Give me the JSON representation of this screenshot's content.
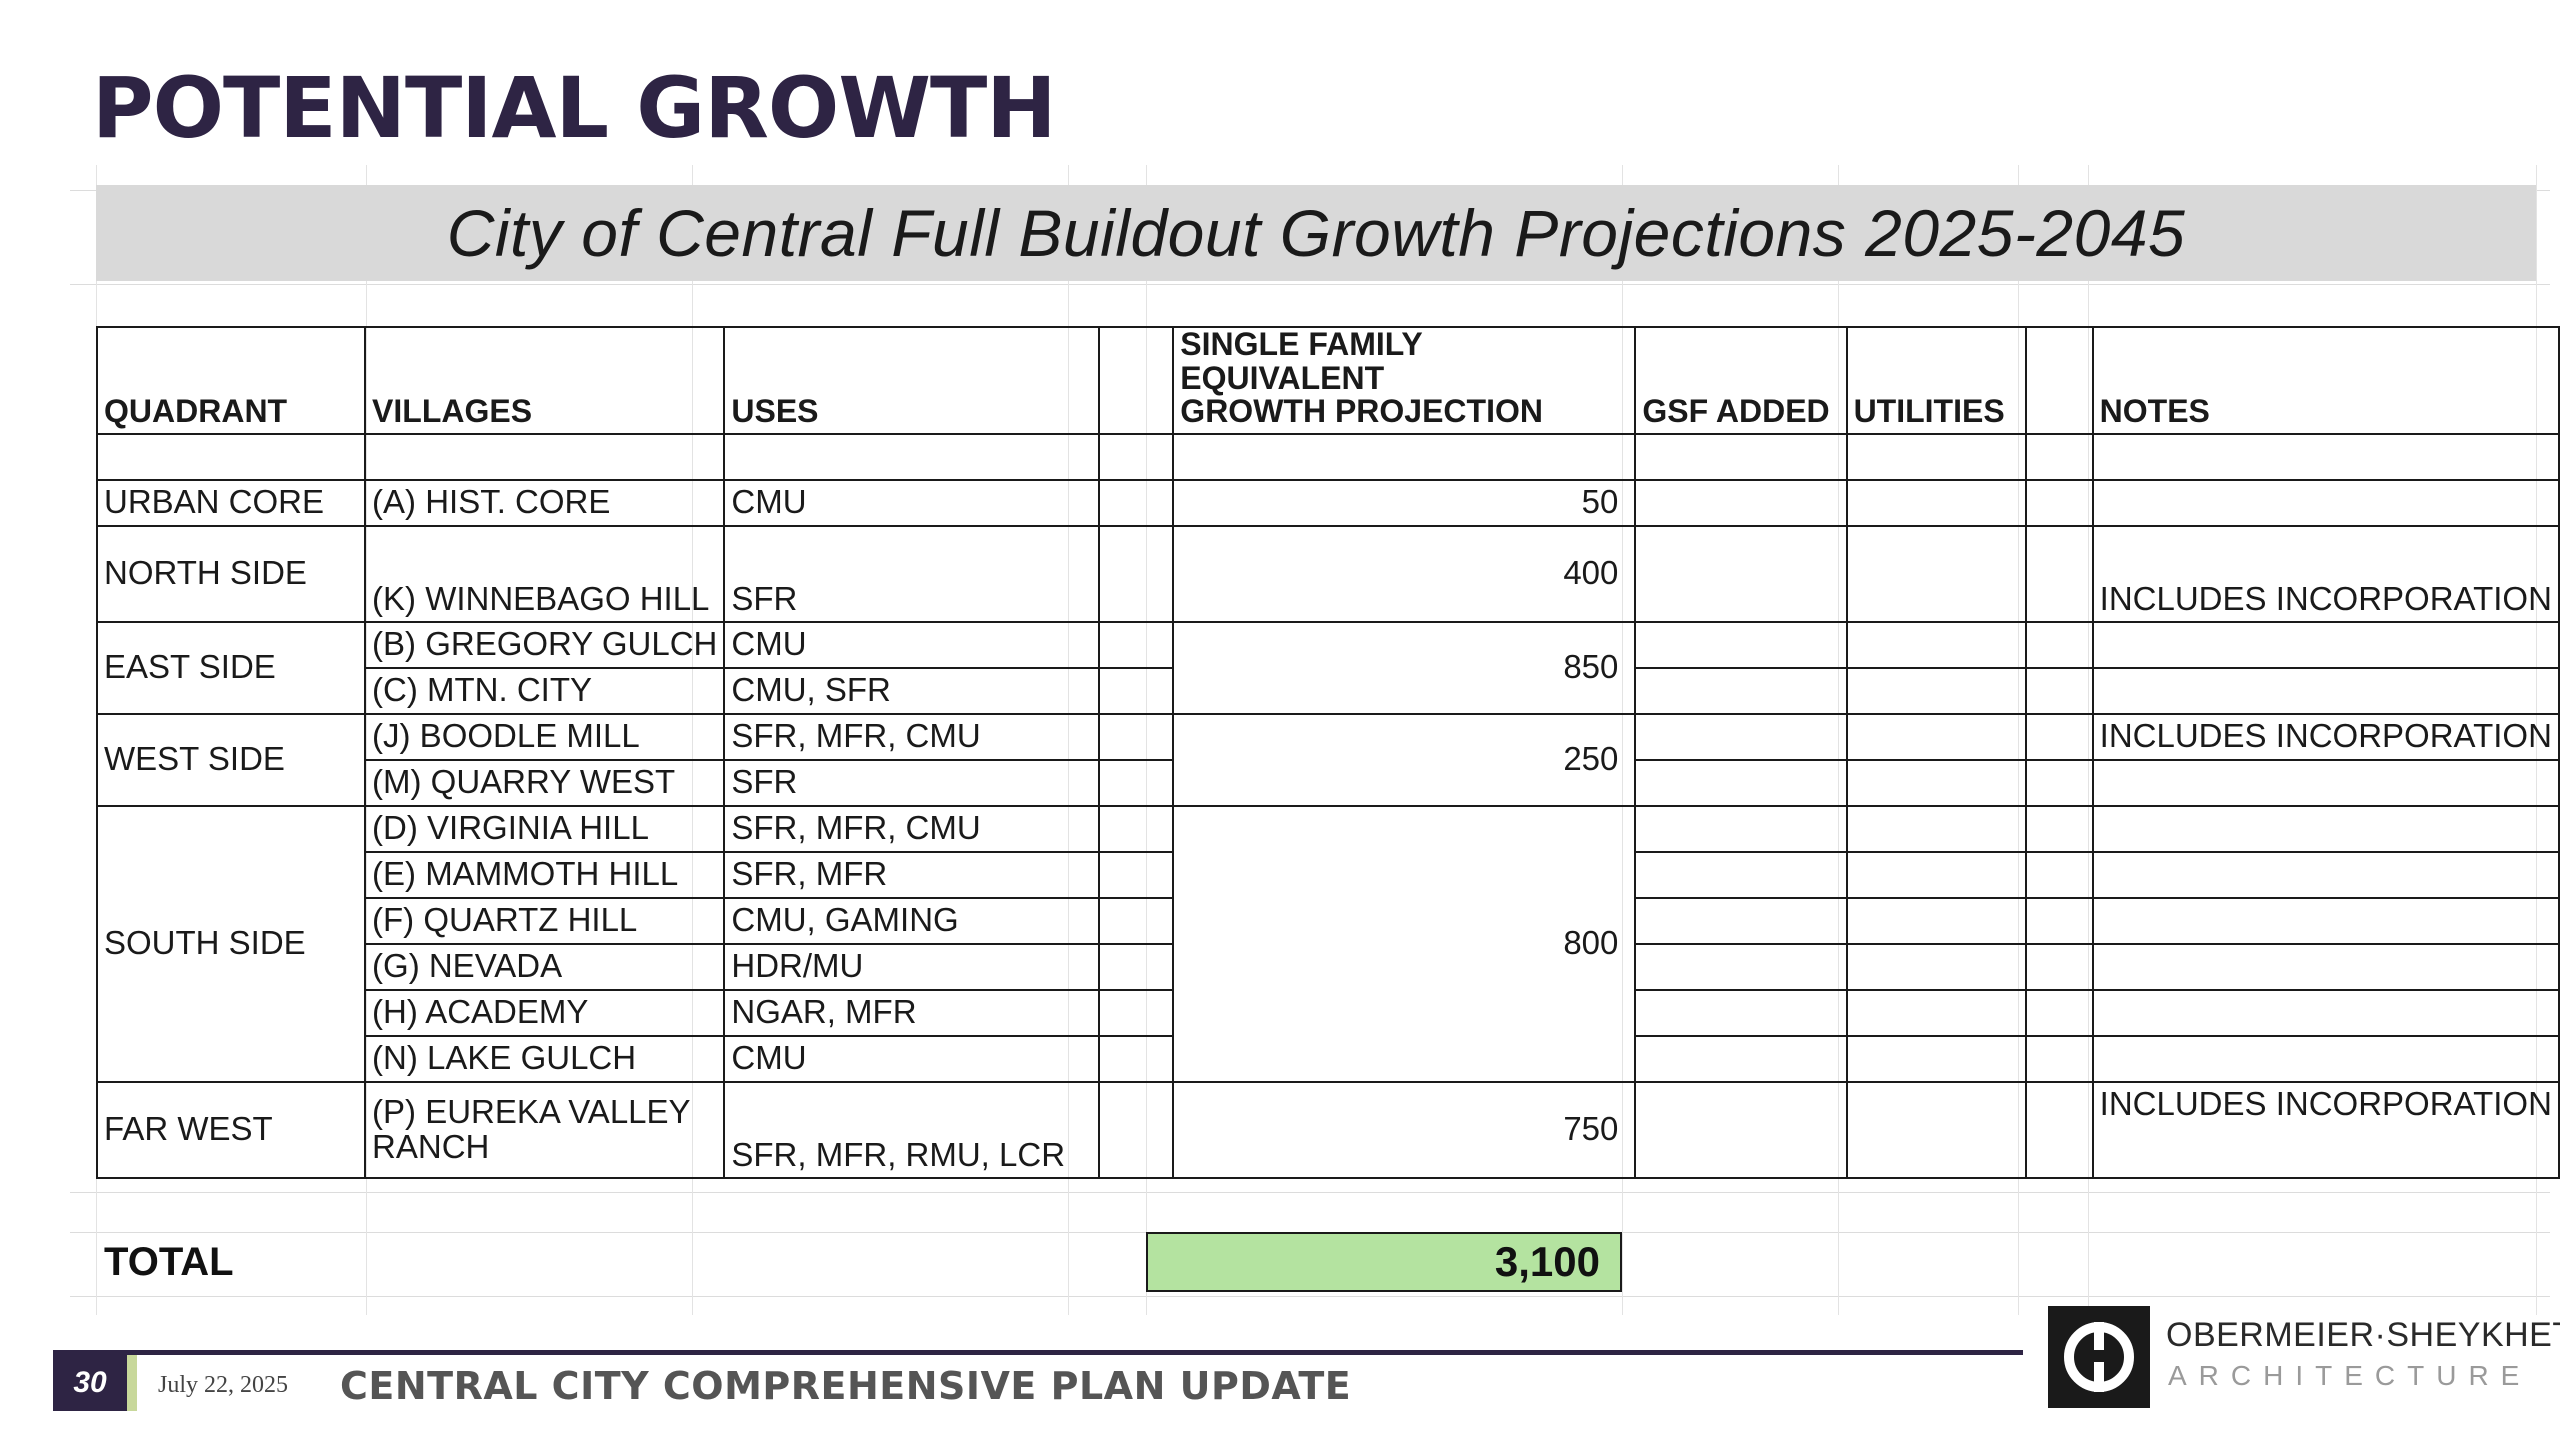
{
  "title": "POTENTIAL GROWTH",
  "banner": "City of Central Full Buildout Growth Projections 2025-2045",
  "columns": {
    "quadrant": "QUADRANT",
    "villages": "VILLAGES",
    "uses": "USES",
    "sfe_line1": "SINGLE FAMILY EQUIVALENT",
    "sfe_line2": "GROWTH PROJECTION",
    "gsf": "GSF ADDED",
    "utilities": "UTILITIES",
    "notes": "NOTES"
  },
  "rows": {
    "urban_core": {
      "quadrant": "URBAN CORE",
      "village": "(A) HIST. CORE",
      "uses": "CMU",
      "projection": "50"
    },
    "north_side": {
      "quadrant": "NORTH SIDE",
      "village": "(K) WINNEBAGO HILL",
      "uses": "SFR",
      "projection": "400",
      "notes": "INCLUDES INCORPORATION"
    },
    "east_side": {
      "quadrant": "EAST SIDE",
      "projection": "850",
      "villages": [
        {
          "village": "(B) GREGORY GULCH",
          "uses": "CMU"
        },
        {
          "village": "(C) MTN. CITY",
          "uses": "CMU, SFR"
        }
      ]
    },
    "west_side": {
      "quadrant": "WEST SIDE",
      "projection": "250",
      "notes": "INCLUDES INCORPORATION",
      "villages": [
        {
          "village": "(J) BOODLE MILL",
          "uses": "SFR, MFR, CMU"
        },
        {
          "village": "(M) QUARRY WEST",
          "uses": "SFR"
        }
      ]
    },
    "south_side": {
      "quadrant": "SOUTH SIDE",
      "projection": "800",
      "villages": [
        {
          "village": "(D) VIRGINIA HILL",
          "uses": "SFR, MFR, CMU"
        },
        {
          "village": "(E) MAMMOTH HILL",
          "uses": "SFR, MFR"
        },
        {
          "village": "(F) QUARTZ HILL",
          "uses": "CMU, GAMING"
        },
        {
          "village": "(G) NEVADA",
          "uses": "HDR/MU"
        },
        {
          "village": "(H) ACADEMY",
          "uses": "NGAR, MFR"
        },
        {
          "village": "(N) LAKE GULCH",
          "uses": "CMU"
        }
      ]
    },
    "far_west": {
      "quadrant": "FAR WEST",
      "village_line1": "(P) EUREKA VALLEY",
      "village_line2": "RANCH",
      "uses": "SFR, MFR, RMU, LCR",
      "projection": "750",
      "notes": "INCLUDES INCORPORATION"
    }
  },
  "total": {
    "label": "TOTAL",
    "value": "3,100",
    "highlight_color": "#b4e3a0"
  },
  "footer": {
    "page_number": "30",
    "date": "July 22, 2025",
    "doc_title": "CENTRAL CITY COMPREHENSIVE PLAN UPDATE",
    "logo_name": "OBERMEIER·SHEYKHET",
    "logo_sub": "ARCHITECTURE",
    "logo_icon": "firm-logo-icon"
  },
  "colors": {
    "title": "#2e2444",
    "banner_bg": "#d9d9d9",
    "footer_bar": "#2e2444"
  }
}
